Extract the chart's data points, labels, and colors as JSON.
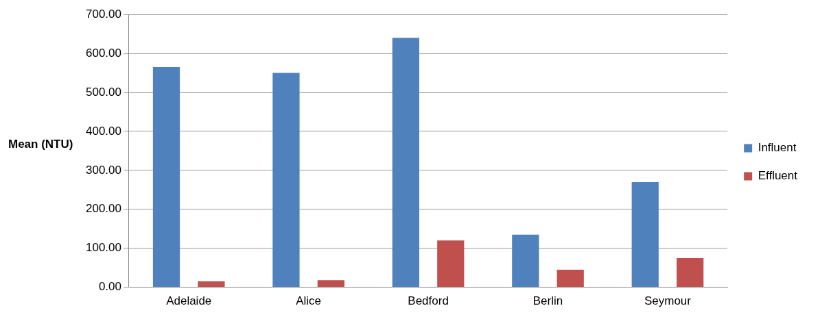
{
  "chart_data": {
    "type": "bar",
    "ylabel": "Mean (NTU)",
    "categories": [
      "Adelaide",
      "Alice",
      "Bedford",
      "Berlin",
      "Seymour"
    ],
    "series": [
      {
        "name": "Influent",
        "color": "#4f81bd",
        "values": [
          565,
          550,
          640,
          135,
          270
        ]
      },
      {
        "name": "Effluent",
        "color": "#c0504d",
        "values": [
          15,
          18,
          120,
          45,
          75
        ]
      }
    ],
    "ylim": [
      0,
      700
    ],
    "yticks": [
      {
        "value": 0,
        "label": "0.00"
      },
      {
        "value": 100,
        "label": "100.00"
      },
      {
        "value": 200,
        "label": "200.00"
      },
      {
        "value": 300,
        "label": "300.00"
      },
      {
        "value": 400,
        "label": "400.00"
      },
      {
        "value": 500,
        "label": "500.00"
      },
      {
        "value": 600,
        "label": "600.00"
      },
      {
        "value": 700,
        "label": "700.00"
      }
    ],
    "grid": "y",
    "legend": "right"
  }
}
